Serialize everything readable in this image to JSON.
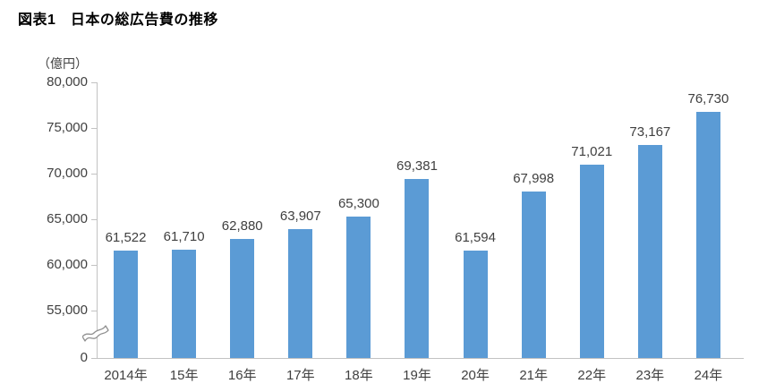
{
  "chart_data": {
    "type": "bar",
    "title": "図表1　日本の総広告費の推移",
    "unit_label": "（億円）",
    "categories": [
      "2014年",
      "15年",
      "16年",
      "17年",
      "18年",
      "19年",
      "20年",
      "21年",
      "22年",
      "23年",
      "24年"
    ],
    "values": [
      61522,
      61710,
      62880,
      63907,
      65300,
      69381,
      61594,
      67998,
      71021,
      73167,
      76730
    ],
    "value_labels": [
      "61,522",
      "61,710",
      "62,880",
      "63,907",
      "65,300",
      "69,381",
      "61,594",
      "67,998",
      "71,021",
      "73,167",
      "76,730"
    ],
    "y_ticks": [
      80000,
      75000,
      70000,
      65000,
      60000,
      55000,
      0
    ],
    "y_tick_labels": [
      "80,000",
      "75,000",
      "70,000",
      "65,000",
      "60,000",
      "55,000",
      "0"
    ],
    "y_axis_break": true,
    "visible_value_range": [
      55000,
      80000
    ],
    "xlabel": "",
    "ylabel": "（億円）",
    "grid": false,
    "legend": false,
    "bar_color": "#5B9BD5",
    "axis_color": "#C2C2C2",
    "label_color": "#404040",
    "title_color": "#000000"
  }
}
